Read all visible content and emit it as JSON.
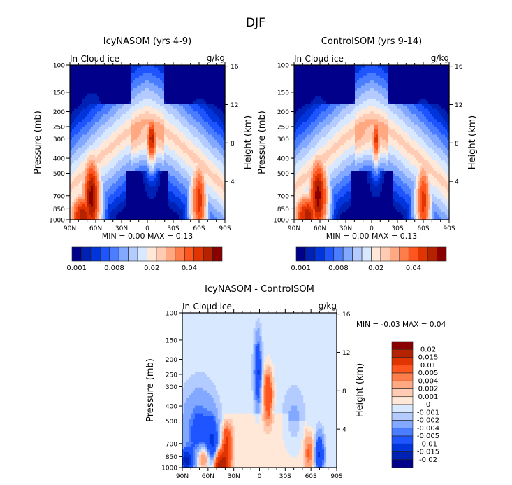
{
  "page_title": "DJF",
  "chart_data": [
    {
      "type": "heatmap",
      "id": "icy",
      "title": "IcyNASOM (yrs 4-9)",
      "subtitle_left": "In-Cloud ice",
      "subtitle_right": "g/kg",
      "ylabel": "Pressure (mb)",
      "ylabel_right": "Height (km)",
      "x_ticks": [
        "90N",
        "60N",
        "30N",
        "0",
        "30S",
        "60S",
        "90S"
      ],
      "x_range": [
        90,
        -90
      ],
      "y_ticks": [
        100,
        150,
        200,
        250,
        300,
        400,
        500,
        700,
        850,
        1000
      ],
      "y_range": [
        100,
        1000
      ],
      "y_scale": "log",
      "y_right_ticks": [
        16,
        12,
        8,
        4
      ],
      "stats": {
        "min_label": "MIN =",
        "min": "0.00",
        "max_label": "MAX =",
        "max": "0.13"
      },
      "colorbar": {
        "orientation": "horizontal",
        "colors": [
          "#00008a",
          "#0022b4",
          "#0035dc",
          "#1e55ff",
          "#4a7dff",
          "#82a8ff",
          "#b3cbff",
          "#d8e8ff",
          "#ffe8d8",
          "#ffcbb3",
          "#ffa882",
          "#ff7d4a",
          "#ff551e",
          "#e03500",
          "#b42200",
          "#8a0000"
        ],
        "labels": [
          "0.001",
          "0.008",
          "0.02",
          "0.04"
        ]
      },
      "features": [
        {
          "lat": 65,
          "p": 720,
          "level": 15,
          "spread_lat": 14,
          "spread_p": 0.35
        },
        {
          "lat": 75,
          "p": 950,
          "level": 14,
          "spread_lat": 20,
          "spread_p": 0.2
        },
        {
          "lat": -5,
          "p": 300,
          "level": 14,
          "spread_lat": 7,
          "spread_p": 0.2
        },
        {
          "lat": -60,
          "p": 750,
          "level": 13,
          "spread_lat": 12,
          "spread_p": 0.35
        }
      ]
    },
    {
      "type": "heatmap",
      "id": "control",
      "title": "ControlSOM (yrs 9-14)",
      "subtitle_left": "In-Cloud ice",
      "subtitle_right": "g/kg",
      "ylabel": "Pressure (mb)",
      "ylabel_right": "Height (km)",
      "x_ticks": [
        "90N",
        "60N",
        "30N",
        "0",
        "30S",
        "60S",
        "90S"
      ],
      "x_range": [
        90,
        -90
      ],
      "y_ticks": [
        100,
        150,
        200,
        250,
        300,
        400,
        500,
        700,
        850,
        1000
      ],
      "y_range": [
        100,
        1000
      ],
      "y_scale": "log",
      "y_right_ticks": [
        16,
        12,
        8,
        4
      ],
      "stats": {
        "min_label": "MIN =",
        "min": "0.00",
        "max_label": "MAX =",
        "max": "0.13"
      },
      "colorbar": {
        "orientation": "horizontal",
        "colors": [
          "#00008a",
          "#0022b4",
          "#0035dc",
          "#1e55ff",
          "#4a7dff",
          "#82a8ff",
          "#b3cbff",
          "#d8e8ff",
          "#ffe8d8",
          "#ffcbb3",
          "#ffa882",
          "#ff7d4a",
          "#ff551e",
          "#e03500",
          "#b42200",
          "#8a0000"
        ],
        "labels": [
          "0.001",
          "0.008",
          "0.02",
          "0.04"
        ]
      },
      "features": [
        {
          "lat": 62,
          "p": 700,
          "level": 15,
          "spread_lat": 14,
          "spread_p": 0.33
        },
        {
          "lat": 75,
          "p": 950,
          "level": 14,
          "spread_lat": 20,
          "spread_p": 0.2
        },
        {
          "lat": -5,
          "p": 300,
          "level": 13,
          "spread_lat": 7,
          "spread_p": 0.2
        },
        {
          "lat": -60,
          "p": 760,
          "level": 13,
          "spread_lat": 12,
          "spread_p": 0.35
        }
      ]
    },
    {
      "type": "heatmap",
      "id": "diff",
      "title": "IcyNASOM - ControlSOM",
      "subtitle_left": "In-Cloud ice",
      "subtitle_right": "g/kg",
      "ylabel": "Pressure (mb)",
      "ylabel_right": "Height (km)",
      "x_ticks": [
        "90N",
        "60N",
        "30N",
        "0",
        "30S",
        "60S",
        "90S"
      ],
      "x_range": [
        90,
        -90
      ],
      "y_ticks": [
        100,
        150,
        200,
        250,
        300,
        400,
        500,
        700,
        850,
        1000
      ],
      "y_range": [
        100,
        1000
      ],
      "y_scale": "log",
      "y_right_ticks": [
        16,
        12,
        8,
        4
      ],
      "stats": {
        "min_label": "MIN =",
        "min": "-0.03",
        "max_label": "MAX =",
        "max": "0.04"
      },
      "colorbar": {
        "orientation": "vertical",
        "colors": [
          "#8a0000",
          "#b42200",
          "#e03500",
          "#ff551e",
          "#ff7d4a",
          "#ffa882",
          "#ffcbb3",
          "#ffe8d8",
          "#d8e8ff",
          "#b3cbff",
          "#82a8ff",
          "#4a7dff",
          "#1e55ff",
          "#0035dc",
          "#0022b4",
          "#00008a"
        ],
        "labels": [
          "0.02",
          "0.015",
          "0.01",
          "0.005",
          "0.004",
          "0.002",
          "0.001",
          "0",
          "-0.001",
          "-0.002",
          "-0.004",
          "-0.005",
          "-0.01",
          "-0.015",
          "-0.02"
        ]
      },
      "features": [
        {
          "lat": 38,
          "p": 700,
          "value": 0.012,
          "spread_lat": 5,
          "spread_p": 0.12
        },
        {
          "lat": 45,
          "p": 960,
          "value": 0.02,
          "spread_lat": 8,
          "spread_p": 0.08
        },
        {
          "lat": 65,
          "p": 870,
          "value": 0.008,
          "spread_lat": 8,
          "spread_p": 0.08
        },
        {
          "lat": -10,
          "p": 340,
          "value": 0.01,
          "spread_lat": 5,
          "spread_p": 0.15
        },
        {
          "lat": 2,
          "p": 240,
          "value": -0.01,
          "spread_lat": 4,
          "spread_p": 0.2
        },
        {
          "lat": 70,
          "p": 600,
          "value": -0.006,
          "spread_lat": 18,
          "spread_p": 0.25
        },
        {
          "lat": 55,
          "p": 700,
          "value": -0.008,
          "spread_lat": 6,
          "spread_p": 0.15
        },
        {
          "lat": 85,
          "p": 900,
          "value": -0.015,
          "spread_lat": 6,
          "spread_p": 0.06
        },
        {
          "lat": -70,
          "p": 820,
          "value": -0.01,
          "spread_lat": 5,
          "spread_p": 0.12
        },
        {
          "lat": -58,
          "p": 800,
          "value": 0.006,
          "spread_lat": 5,
          "spread_p": 0.12
        },
        {
          "lat": -40,
          "p": 500,
          "value": -0.002,
          "spread_lat": 12,
          "spread_p": 0.2
        }
      ]
    }
  ]
}
